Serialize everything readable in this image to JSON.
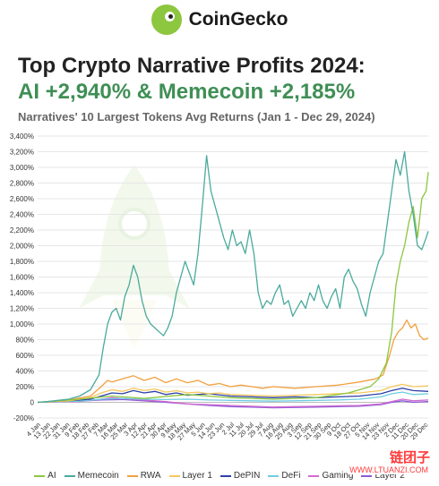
{
  "brand": {
    "name": "CoinGecko",
    "logo": "gecko-logo-icon"
  },
  "chart_data": {
    "type": "line",
    "title": "Top Crypto Narrative Profits 2024:",
    "title_line2": "AI +2,940% & Memecoin +2,185%",
    "subtitle": "Narratives' 10 Largest Tokens Avg Returns (Jan 1 - Dec 29, 2024)",
    "ylim": [
      -200,
      3400
    ],
    "yticks": [
      "-200%",
      "0",
      "200%",
      "400%",
      "600%",
      "800%",
      "1,000%",
      "1,200%",
      "1,400%",
      "1,600%",
      "1,800%",
      "2,000%",
      "2,200%",
      "2,400%",
      "2,600%",
      "2,800%",
      "3,000%",
      "3,200%",
      "3,400%"
    ],
    "ytick_values": [
      -200,
      0,
      200,
      400,
      600,
      800,
      1000,
      1200,
      1400,
      1600,
      1800,
      2000,
      2200,
      2400,
      2600,
      2800,
      3000,
      3200,
      3400
    ],
    "x_ticks": [
      "4 Jan",
      "13 Jan",
      "22 Jan",
      "31 Jan",
      "9 Feb",
      "18 Feb",
      "27 Feb",
      "7 Mar",
      "16 Mar",
      "25 Mar",
      "3 Apr",
      "12 Apr",
      "21 Apr",
      "30 Apr",
      "9 May",
      "18 May",
      "27 May",
      "5 Jun",
      "14 Jun",
      "23 Jun",
      "2 Jul",
      "11 Jul",
      "20 Jul",
      "29 Jul",
      "7 Aug",
      "16 Aug",
      "25 Aug",
      "3 Sep",
      "12 Sep",
      "21 Sep",
      "30 Sep",
      "9 Oct",
      "18 Oct",
      "27 Oct",
      "5 Nov",
      "14 Nov",
      "23 Nov",
      "2 Dec",
      "11 Dec",
      "20 Dec",
      "29 Dec"
    ],
    "x_tick_days": [
      4,
      13,
      22,
      31,
      40,
      49,
      58,
      67,
      76,
      85,
      94,
      103,
      112,
      121,
      130,
      139,
      148,
      157,
      166,
      175,
      184,
      193,
      202,
      211,
      220,
      229,
      238,
      247,
      256,
      265,
      274,
      283,
      292,
      301,
      310,
      319,
      328,
      337,
      346,
      355,
      364
    ],
    "xrange_days": [
      1,
      364
    ],
    "grid": true,
    "legend_position": "bottom",
    "series": [
      {
        "name": "Memecoin",
        "color": "#4aaa9c",
        "points": [
          [
            1,
            0
          ],
          [
            10,
            10
          ],
          [
            20,
            25
          ],
          [
            30,
            40
          ],
          [
            40,
            80
          ],
          [
            50,
            160
          ],
          [
            58,
            350
          ],
          [
            62,
            700
          ],
          [
            66,
            1000
          ],
          [
            70,
            1150
          ],
          [
            74,
            1200
          ],
          [
            78,
            1050
          ],
          [
            82,
            1350
          ],
          [
            86,
            1500
          ],
          [
            90,
            1750
          ],
          [
            94,
            1600
          ],
          [
            98,
            1300
          ],
          [
            102,
            1100
          ],
          [
            106,
            1000
          ],
          [
            110,
            950
          ],
          [
            114,
            900
          ],
          [
            118,
            850
          ],
          [
            122,
            950
          ],
          [
            126,
            1100
          ],
          [
            130,
            1400
          ],
          [
            134,
            1600
          ],
          [
            138,
            1800
          ],
          [
            142,
            1650
          ],
          [
            146,
            1500
          ],
          [
            150,
            1900
          ],
          [
            154,
            2500
          ],
          [
            158,
            3150
          ],
          [
            162,
            2700
          ],
          [
            166,
            2500
          ],
          [
            170,
            2300
          ],
          [
            174,
            2100
          ],
          [
            178,
            1950
          ],
          [
            182,
            2200
          ],
          [
            186,
            2000
          ],
          [
            190,
            2050
          ],
          [
            194,
            1900
          ],
          [
            198,
            2200
          ],
          [
            202,
            1900
          ],
          [
            206,
            1400
          ],
          [
            210,
            1200
          ],
          [
            214,
            1300
          ],
          [
            218,
            1250
          ],
          [
            222,
            1400
          ],
          [
            226,
            1500
          ],
          [
            230,
            1250
          ],
          [
            234,
            1300
          ],
          [
            238,
            1100
          ],
          [
            242,
            1200
          ],
          [
            246,
            1300
          ],
          [
            250,
            1200
          ],
          [
            254,
            1400
          ],
          [
            258,
            1300
          ],
          [
            262,
            1500
          ],
          [
            266,
            1300
          ],
          [
            270,
            1200
          ],
          [
            274,
            1350
          ],
          [
            278,
            1450
          ],
          [
            282,
            1200
          ],
          [
            286,
            1600
          ],
          [
            290,
            1700
          ],
          [
            294,
            1550
          ],
          [
            298,
            1450
          ],
          [
            302,
            1250
          ],
          [
            306,
            1100
          ],
          [
            310,
            1400
          ],
          [
            314,
            1600
          ],
          [
            318,
            1800
          ],
          [
            322,
            1900
          ],
          [
            326,
            2300
          ],
          [
            330,
            2700
          ],
          [
            334,
            3100
          ],
          [
            338,
            2900
          ],
          [
            342,
            3200
          ],
          [
            346,
            2700
          ],
          [
            350,
            2400
          ],
          [
            354,
            2000
          ],
          [
            358,
            1950
          ],
          [
            362,
            2100
          ],
          [
            364,
            2185
          ]
        ]
      },
      {
        "name": "AI",
        "color": "#8cc63f",
        "points": [
          [
            1,
            0
          ],
          [
            40,
            40
          ],
          [
            70,
            80
          ],
          [
            100,
            50
          ],
          [
            140,
            100
          ],
          [
            180,
            60
          ],
          [
            220,
            40
          ],
          [
            260,
            60
          ],
          [
            290,
            120
          ],
          [
            310,
            200
          ],
          [
            318,
            300
          ],
          [
            325,
            500
          ],
          [
            330,
            900
          ],
          [
            334,
            1500
          ],
          [
            338,
            1800
          ],
          [
            342,
            2000
          ],
          [
            346,
            2300
          ],
          [
            350,
            2500
          ],
          [
            354,
            2100
          ],
          [
            358,
            2600
          ],
          [
            362,
            2700
          ],
          [
            364,
            2940
          ]
        ]
      },
      {
        "name": "RWA",
        "color": "#f0a040",
        "points": [
          [
            1,
            0
          ],
          [
            30,
            30
          ],
          [
            50,
            80
          ],
          [
            60,
            200
          ],
          [
            66,
            280
          ],
          [
            70,
            260
          ],
          [
            80,
            300
          ],
          [
            90,
            340
          ],
          [
            100,
            280
          ],
          [
            110,
            320
          ],
          [
            120,
            250
          ],
          [
            130,
            300
          ],
          [
            140,
            250
          ],
          [
            150,
            280
          ],
          [
            160,
            220
          ],
          [
            170,
            240
          ],
          [
            180,
            200
          ],
          [
            190,
            220
          ],
          [
            200,
            200
          ],
          [
            210,
            180
          ],
          [
            220,
            200
          ],
          [
            240,
            180
          ],
          [
            260,
            200
          ],
          [
            280,
            220
          ],
          [
            300,
            260
          ],
          [
            315,
            300
          ],
          [
            322,
            350
          ],
          [
            328,
            600
          ],
          [
            332,
            800
          ],
          [
            336,
            900
          ],
          [
            340,
            950
          ],
          [
            344,
            1050
          ],
          [
            348,
            950
          ],
          [
            352,
            1000
          ],
          [
            356,
            850
          ],
          [
            360,
            800
          ],
          [
            364,
            820
          ]
        ]
      },
      {
        "name": "Layer 1",
        "color": "#f5c85a",
        "points": [
          [
            1,
            0
          ],
          [
            30,
            20
          ],
          [
            50,
            60
          ],
          [
            60,
            120
          ],
          [
            70,
            160
          ],
          [
            80,
            140
          ],
          [
            90,
            180
          ],
          [
            100,
            150
          ],
          [
            110,
            170
          ],
          [
            120,
            130
          ],
          [
            130,
            150
          ],
          [
            140,
            120
          ],
          [
            150,
            130
          ],
          [
            160,
            110
          ],
          [
            170,
            120
          ],
          [
            180,
            100
          ],
          [
            200,
            90
          ],
          [
            220,
            80
          ],
          [
            240,
            90
          ],
          [
            260,
            100
          ],
          [
            280,
            110
          ],
          [
            300,
            120
          ],
          [
            320,
            150
          ],
          [
            330,
            200
          ],
          [
            340,
            230
          ],
          [
            350,
            200
          ],
          [
            364,
            210
          ]
        ]
      },
      {
        "name": "DePIN",
        "color": "#2b3fa8",
        "points": [
          [
            1,
            0
          ],
          [
            30,
            20
          ],
          [
            50,
            40
          ],
          [
            60,
            80
          ],
          [
            70,
            120
          ],
          [
            80,
            110
          ],
          [
            90,
            150
          ],
          [
            100,
            120
          ],
          [
            110,
            140
          ],
          [
            120,
            100
          ],
          [
            130,
            120
          ],
          [
            140,
            90
          ],
          [
            160,
            110
          ],
          [
            180,
            80
          ],
          [
            200,
            70
          ],
          [
            220,
            60
          ],
          [
            240,
            70
          ],
          [
            260,
            60
          ],
          [
            280,
            70
          ],
          [
            300,
            80
          ],
          [
            320,
            110
          ],
          [
            330,
            150
          ],
          [
            340,
            180
          ],
          [
            350,
            150
          ],
          [
            364,
            140
          ]
        ]
      },
      {
        "name": "DeFi",
        "color": "#6fcde0",
        "points": [
          [
            1,
            0
          ],
          [
            40,
            15
          ],
          [
            60,
            40
          ],
          [
            80,
            50
          ],
          [
            100,
            40
          ],
          [
            120,
            35
          ],
          [
            140,
            40
          ],
          [
            160,
            30
          ],
          [
            180,
            25
          ],
          [
            200,
            20
          ],
          [
            220,
            15
          ],
          [
            240,
            20
          ],
          [
            260,
            25
          ],
          [
            280,
            30
          ],
          [
            300,
            40
          ],
          [
            320,
            70
          ],
          [
            330,
            110
          ],
          [
            340,
            130
          ],
          [
            350,
            100
          ],
          [
            364,
            110
          ]
        ]
      },
      {
        "name": "Gaming",
        "color": "#d26ad0",
        "points": [
          [
            1,
            0
          ],
          [
            40,
            10
          ],
          [
            60,
            40
          ],
          [
            70,
            60
          ],
          [
            80,
            50
          ],
          [
            100,
            30
          ],
          [
            120,
            10
          ],
          [
            140,
            -20
          ],
          [
            160,
            -30
          ],
          [
            180,
            -40
          ],
          [
            200,
            -50
          ],
          [
            220,
            -60
          ],
          [
            240,
            -55
          ],
          [
            260,
            -50
          ],
          [
            280,
            -45
          ],
          [
            300,
            -40
          ],
          [
            320,
            -20
          ],
          [
            330,
            10
          ],
          [
            340,
            40
          ],
          [
            350,
            20
          ],
          [
            364,
            30
          ]
        ]
      },
      {
        "name": "Layer 2",
        "color": "#8a5ad6",
        "points": [
          [
            1,
            0
          ],
          [
            40,
            15
          ],
          [
            60,
            30
          ],
          [
            80,
            35
          ],
          [
            100,
            20
          ],
          [
            120,
            0
          ],
          [
            140,
            -20
          ],
          [
            160,
            -40
          ],
          [
            180,
            -55
          ],
          [
            200,
            -60
          ],
          [
            220,
            -70
          ],
          [
            240,
            -65
          ],
          [
            260,
            -60
          ],
          [
            280,
            -55
          ],
          [
            300,
            -50
          ],
          [
            320,
            -30
          ],
          [
            330,
            0
          ],
          [
            340,
            20
          ],
          [
            350,
            0
          ],
          [
            364,
            10
          ]
        ]
      }
    ]
  },
  "legend": {
    "items": [
      "AI",
      "Memecoin",
      "RWA",
      "Layer 1",
      "DePIN",
      "DeFi",
      "Gaming",
      "Layer 2"
    ]
  },
  "watermark": {
    "main": "链团子",
    "sub": "WWW.LTUANZI.COM"
  }
}
